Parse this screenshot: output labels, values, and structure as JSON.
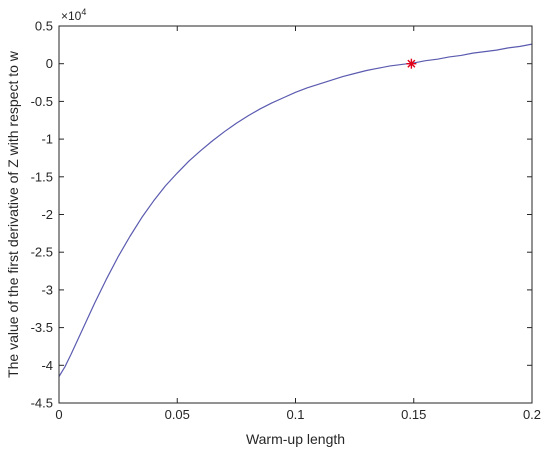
{
  "chart_data": {
    "type": "line",
    "title": "",
    "xlabel": "Warm-up length",
    "ylabel": "The value of the first derivative of Z with respect to w",
    "y_exponent_label": {
      "base": "×10",
      "exponent": "4"
    },
    "y_scale_factor": 10000,
    "xlim": [
      0,
      0.2
    ],
    "ylim": [
      -4.5,
      0.5
    ],
    "xticks": [
      0,
      0.05,
      0.1,
      0.15,
      0.2
    ],
    "xtick_labels": [
      "0",
      "0.05",
      "0.1",
      "0.15",
      "0.2"
    ],
    "yticks": [
      -4.5,
      -4,
      -3.5,
      -3,
      -2.5,
      -2,
      -1.5,
      -1,
      -0.5,
      0,
      0.5
    ],
    "ytick_labels": [
      "-4.5",
      "-4",
      "-3.5",
      "-3",
      "-2.5",
      "-2",
      "-1.5",
      "-1",
      "-0.5",
      "0",
      "0.5"
    ],
    "grid": false,
    "legend": null,
    "series": [
      {
        "color": "#5b5bb0",
        "x": [
          0,
          0.0025,
          0.005,
          0.01,
          0.015,
          0.02,
          0.025,
          0.03,
          0.035,
          0.04,
          0.045,
          0.05,
          0.055,
          0.06,
          0.065,
          0.07,
          0.075,
          0.08,
          0.085,
          0.09,
          0.095,
          0.1,
          0.105,
          0.11,
          0.115,
          0.12,
          0.125,
          0.13,
          0.135,
          0.14,
          0.145,
          0.15,
          0.155,
          0.16,
          0.165,
          0.17,
          0.175,
          0.18,
          0.185,
          0.19,
          0.195,
          0.2
        ],
        "y": [
          -4.15,
          -4.02,
          -3.86,
          -3.52,
          -3.18,
          -2.86,
          -2.56,
          -2.29,
          -2.04,
          -1.82,
          -1.62,
          -1.45,
          -1.29,
          -1.15,
          -1.02,
          -0.9,
          -0.79,
          -0.69,
          -0.6,
          -0.52,
          -0.45,
          -0.38,
          -0.32,
          -0.27,
          -0.22,
          -0.17,
          -0.13,
          -0.09,
          -0.06,
          -0.03,
          -0.01,
          0.01,
          0.04,
          0.06,
          0.09,
          0.11,
          0.14,
          0.16,
          0.18,
          0.21,
          0.23,
          0.26
        ]
      }
    ],
    "markers": [
      {
        "x": 0.149,
        "y": 0.0,
        "symbol": "*",
        "color": "#e0001b"
      }
    ]
  }
}
